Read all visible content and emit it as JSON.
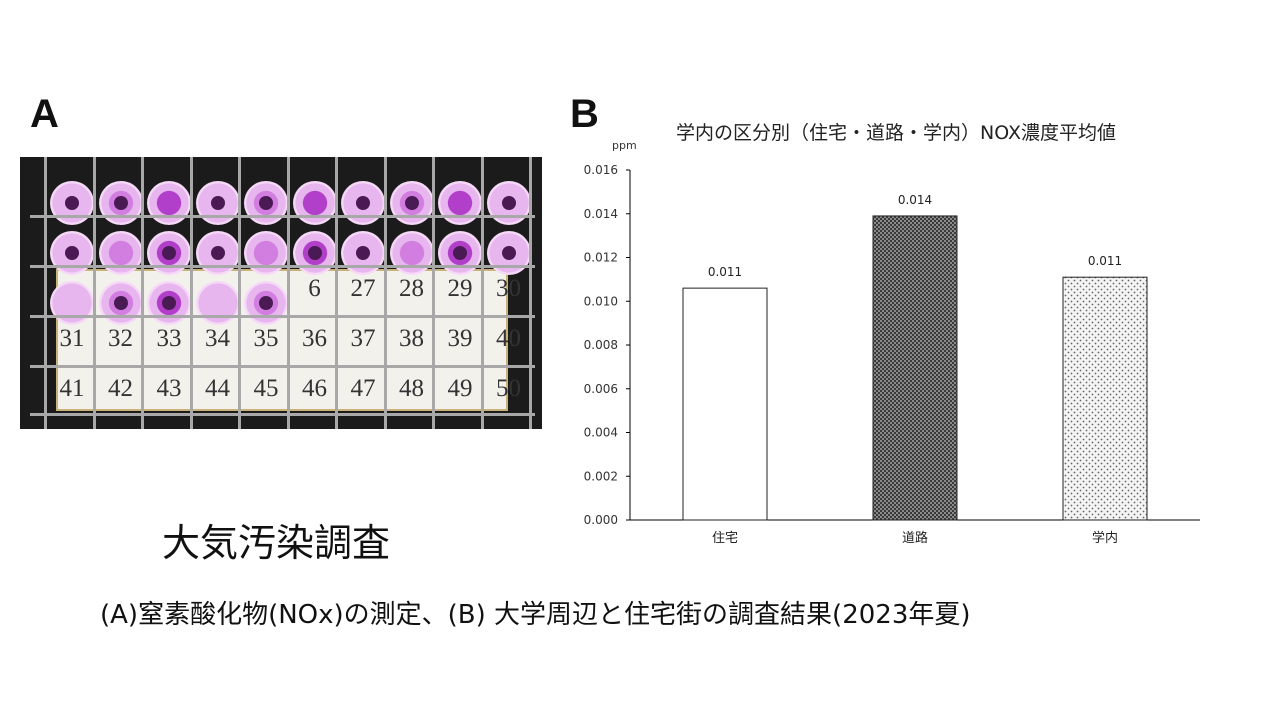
{
  "panels": {
    "a_letter": "A",
    "b_letter": "B"
  },
  "photo": {
    "colors": {
      "tray": "#1b1b1b",
      "pink_light": "#e7b6ee",
      "pink_mid": "#d27ee0",
      "pink_dark": "#b23fc9",
      "paper": "#f3f1ec"
    },
    "visible_numbers": [
      [
        "6",
        "27",
        "28",
        "29",
        "30"
      ],
      [
        "31",
        "32",
        "33",
        "34",
        "35",
        "36",
        "37",
        "38",
        "39",
        "40"
      ],
      [
        "41",
        "42",
        "43",
        "44",
        "45",
        "46",
        "47",
        "48",
        "49",
        "50"
      ]
    ]
  },
  "chart_data": {
    "type": "bar",
    "title": "学内の区分別（住宅・道路・学内）NOX濃度平均値",
    "ylabel": "ppm",
    "categories": [
      "住宅",
      "道路",
      "学内"
    ],
    "values": [
      0.0106,
      0.0139,
      0.0111
    ],
    "data_labels": [
      "0.011",
      "0.014",
      "0.011"
    ],
    "ylim": [
      0,
      0.016
    ],
    "yticks": [
      "0.000",
      "0.002",
      "0.004",
      "0.006",
      "0.008",
      "0.010",
      "0.012",
      "0.014",
      "0.016"
    ],
    "grid": false,
    "bar_styles": [
      "white",
      "dark-dense-pattern",
      "light-dotted-pattern"
    ]
  },
  "captions": {
    "title": "大気汚染調査",
    "subtitle": "(A)窒素酸化物(NOx)の測定、(B) 大学周辺と住宅街の調査結果(2023年夏)"
  }
}
